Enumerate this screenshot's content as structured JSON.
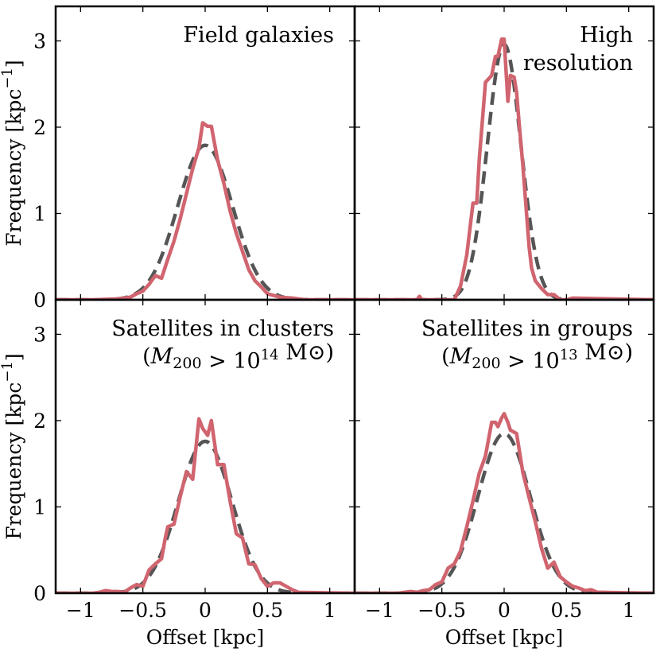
{
  "figure": {
    "ylabel": "Frequency [kpc⁻¹]",
    "xlabel": "Offset [kpc]"
  },
  "colors": {
    "histogram": "#d0646f",
    "gaussian_fit": "#555555",
    "axes": "#000000"
  },
  "chart_data": [
    {
      "type": "line",
      "title_lines": [
        "Field galaxies"
      ],
      "xlabel": "",
      "ylabel": "Frequency [kpc⁻¹]",
      "xlim": [
        -1.2,
        1.2
      ],
      "ylim": [
        0,
        3.4
      ],
      "xticks": [
        -1,
        -0.5,
        0,
        0.5,
        1
      ],
      "xtick_labels": [
        "−1",
        "−0.5",
        "0",
        "0.5",
        "1"
      ],
      "yticks": [
        0,
        1,
        2,
        3
      ],
      "ytick_labels": [
        "0",
        "1",
        "2",
        "3"
      ],
      "series": [
        {
          "name": "histogram",
          "x": [
            -1.2,
            -0.9,
            -0.7,
            -0.6,
            -0.55,
            -0.5,
            -0.45,
            -0.4,
            -0.35,
            -0.3,
            -0.25,
            -0.2,
            -0.15,
            -0.1,
            -0.05,
            -0.02,
            0.02,
            0.05,
            0.1,
            0.15,
            0.2,
            0.25,
            0.3,
            0.35,
            0.4,
            0.45,
            0.5,
            0.55,
            0.6,
            0.7,
            0.8,
            1.2
          ],
          "y": [
            0,
            0,
            0.01,
            0.03,
            0.07,
            0.1,
            0.18,
            0.28,
            0.25,
            0.47,
            0.68,
            0.94,
            1.23,
            1.52,
            1.76,
            2.05,
            2.01,
            2.01,
            1.62,
            1.35,
            1.03,
            0.77,
            0.56,
            0.35,
            0.22,
            0.15,
            0.07,
            0.05,
            0.03,
            0.02,
            0,
            0
          ]
        },
        {
          "name": "gaussian fit",
          "amplitude": 1.79,
          "sigma": 0.22
        }
      ]
    },
    {
      "type": "line",
      "title_lines": [
        "High",
        "resolution"
      ],
      "xlabel": "",
      "ylabel": "",
      "xlim": [
        -1.2,
        1.2
      ],
      "ylim": [
        0,
        3.4
      ],
      "xticks": [
        -1,
        -0.5,
        0,
        0.5,
        1
      ],
      "xtick_labels": [
        "−1",
        "−0.5",
        "0",
        "0.5",
        "1"
      ],
      "yticks": [
        0,
        1,
        2,
        3
      ],
      "ytick_labels": [
        "0",
        "1",
        "2",
        "3"
      ],
      "series": [
        {
          "name": "histogram",
          "x": [
            -1.2,
            -0.7,
            -0.68,
            -0.66,
            -0.4,
            -0.35,
            -0.3,
            -0.25,
            -0.22,
            -0.2,
            -0.15,
            -0.1,
            -0.07,
            -0.05,
            -0.02,
            0,
            0.03,
            0.05,
            0.08,
            0.1,
            0.12,
            0.15,
            0.2,
            0.22,
            0.25,
            0.3,
            0.35,
            0.4,
            0.45,
            0.5,
            0.55,
            1.2
          ],
          "y": [
            0,
            0,
            0.04,
            0,
            0,
            0.16,
            0.52,
            1.12,
            1.12,
            1.62,
            2.52,
            2.6,
            2.82,
            2.82,
            3.02,
            3.02,
            2.3,
            2.6,
            2.58,
            2.4,
            2.05,
            1.56,
            0.62,
            0.37,
            0.22,
            0.13,
            0.06,
            0.06,
            0,
            0,
            0.02,
            0
          ]
        },
        {
          "name": "gaussian fit",
          "amplitude": 2.96,
          "sigma": 0.135
        }
      ]
    },
    {
      "type": "line",
      "title_lines": [
        "Satellites in clusters",
        "(M200 > 10^14 M⊙)"
      ],
      "xlabel": "Offset [kpc]",
      "ylabel": "Frequency [kpc⁻¹]",
      "xlim": [
        -1.2,
        1.2
      ],
      "ylim": [
        0,
        3.4
      ],
      "xticks": [
        -1,
        -0.5,
        0,
        0.5,
        1
      ],
      "xtick_labels": [
        "−1",
        "−0.5",
        "0",
        "0.5",
        "1"
      ],
      "yticks": [
        0,
        1,
        2,
        3
      ],
      "ytick_labels": [
        "0",
        "1",
        "2",
        "3"
      ],
      "series": [
        {
          "name": "histogram",
          "x": [
            -1.2,
            -0.9,
            -0.85,
            -0.8,
            -0.75,
            -0.7,
            -0.65,
            -0.6,
            -0.55,
            -0.5,
            -0.45,
            -0.4,
            -0.35,
            -0.32,
            -0.3,
            -0.25,
            -0.2,
            -0.15,
            -0.1,
            -0.05,
            -0.02,
            0.02,
            0.05,
            0.1,
            0.15,
            0.2,
            0.25,
            0.3,
            0.35,
            0.4,
            0.45,
            0.5,
            0.55,
            0.6,
            0.65,
            0.7,
            0.75,
            1.2
          ],
          "y": [
            0,
            0,
            0.01,
            0.03,
            0.02,
            0.02,
            0.01,
            0.06,
            0.1,
            0.08,
            0.27,
            0.34,
            0.4,
            0.64,
            0.77,
            0.8,
            1.12,
            1.41,
            1.32,
            2.02,
            1.91,
            1.83,
            2.0,
            1.49,
            1.49,
            1.07,
            0.69,
            0.64,
            0.34,
            0.33,
            0.17,
            0.08,
            0.12,
            0.12,
            0.08,
            0.04,
            0.01,
            0
          ]
        },
        {
          "name": "gaussian fit",
          "amplitude": 1.76,
          "sigma": 0.215
        }
      ]
    },
    {
      "type": "line",
      "title_lines": [
        "Satellites in groups",
        "(M200 > 10^13 M⊙)"
      ],
      "xlabel": "Offset [kpc]",
      "ylabel": "",
      "xlim": [
        -1.2,
        1.2
      ],
      "ylim": [
        0,
        3.4
      ],
      "xticks": [
        -1,
        -0.5,
        0,
        0.5,
        1
      ],
      "xtick_labels": [
        "−1",
        "−0.5",
        "0",
        "0.5",
        "1"
      ],
      "yticks": [
        0,
        1,
        2,
        3
      ],
      "ytick_labels": [
        "0",
        "1",
        "2",
        "3"
      ],
      "series": [
        {
          "name": "histogram",
          "x": [
            -1.2,
            -0.85,
            -0.8,
            -0.75,
            -0.7,
            -0.65,
            -0.6,
            -0.55,
            -0.5,
            -0.45,
            -0.4,
            -0.35,
            -0.3,
            -0.25,
            -0.2,
            -0.15,
            -0.1,
            -0.07,
            -0.05,
            -0.02,
            0,
            0.03,
            0.05,
            0.1,
            0.15,
            0.2,
            0.25,
            0.3,
            0.35,
            0.4,
            0.45,
            0.5,
            0.55,
            0.6,
            0.65,
            0.7,
            0.75,
            0.8,
            1.2
          ],
          "y": [
            0,
            0,
            0.01,
            0.02,
            0.01,
            0.03,
            0.04,
            0.1,
            0.13,
            0.29,
            0.34,
            0.49,
            0.77,
            1.07,
            1.39,
            1.59,
            1.98,
            1.98,
            1.93,
            2.03,
            2.08,
            1.98,
            1.89,
            1.85,
            1.4,
            1.11,
            0.83,
            0.52,
            0.29,
            0.36,
            0.19,
            0.13,
            0.08,
            0.06,
            0.03,
            0.04,
            0.01,
            0.01,
            0
          ]
        },
        {
          "name": "gaussian fit",
          "amplitude": 1.85,
          "sigma": 0.21
        }
      ]
    }
  ]
}
